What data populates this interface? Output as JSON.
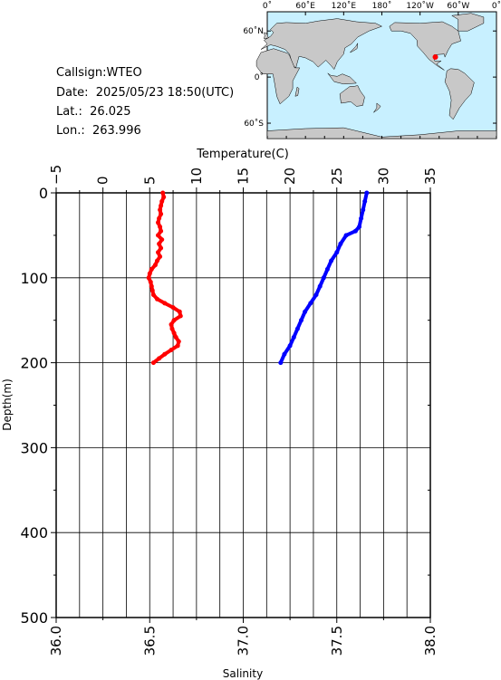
{
  "header": {
    "callsign": "Callsign:WTEO",
    "date": "Date:  2025/05/23 18:50(UTC)",
    "lat": "Lat.:  26.025",
    "lon": "Lon.:  263.996"
  },
  "map": {
    "top_ticks": [
      "0˚",
      "60˚E",
      "120˚E",
      "180˚",
      "120˚W",
      "60˚W",
      "0˚"
    ],
    "left_ticks": [
      "60˚N",
      "0˚",
      "60˚S"
    ],
    "ocean_color": "#c8f0ff",
    "land_color": "#c8c8c8",
    "marker_color": "#ff0000",
    "marker_lon": 263.996,
    "marker_lat": 26.025
  },
  "chart_data": {
    "type": "line",
    "title": "",
    "top_axis_label": "Temperature(C)",
    "left_axis_label": "Depth(m)",
    "bottom_axis_label": "Salinity",
    "temperature_ticks": [
      "−5",
      "0",
      "5",
      "10",
      "15",
      "20",
      "25",
      "30",
      "35"
    ],
    "depth_ticks": [
      "0",
      "100",
      "200",
      "300",
      "400",
      "500"
    ],
    "salinity_ticks": [
      "36.0",
      "36.5",
      "37.0",
      "37.5",
      "38.0"
    ],
    "temperature_range": [
      -5,
      35
    ],
    "depth_range": [
      0,
      500
    ],
    "salinity_range": [
      36.0,
      38.0
    ],
    "grid": true,
    "series": [
      {
        "name": "",
        "color": "#ff0000",
        "axis": "temperature",
        "depth": [
          0,
          5,
          10,
          15,
          20,
          25,
          30,
          35,
          40,
          45,
          50,
          55,
          60,
          65,
          70,
          75,
          80,
          85,
          90,
          95,
          100,
          105,
          110,
          115,
          120,
          125,
          130,
          135,
          140,
          145,
          150,
          155,
          160,
          165,
          170,
          175,
          180,
          185,
          190,
          195,
          200
        ],
        "values": [
          6.4,
          6.5,
          6.3,
          6.2,
          6.1,
          6.2,
          6.0,
          5.9,
          6.1,
          6.2,
          5.9,
          6.3,
          6.0,
          6.2,
          5.9,
          6.1,
          5.8,
          5.6,
          5.2,
          5.0,
          4.9,
          5.1,
          5.2,
          5.3,
          5.4,
          5.8,
          6.6,
          7.5,
          8.2,
          8.3,
          7.6,
          7.3,
          7.4,
          7.6,
          7.8,
          8.1,
          8.0,
          7.3,
          6.6,
          6.0,
          5.4
        ]
      },
      {
        "name": "",
        "color": "#0000ff",
        "axis": "salinity",
        "depth": [
          0,
          10,
          20,
          30,
          40,
          45,
          50,
          60,
          70,
          80,
          90,
          100,
          110,
          120,
          130,
          140,
          150,
          160,
          170,
          180,
          190,
          200
        ],
        "values": [
          37.66,
          37.65,
          37.64,
          37.63,
          37.62,
          37.6,
          37.55,
          37.52,
          37.5,
          37.47,
          37.45,
          37.43,
          37.41,
          37.39,
          37.36,
          37.33,
          37.31,
          37.29,
          37.27,
          37.25,
          37.22,
          37.2
        ]
      }
    ]
  }
}
